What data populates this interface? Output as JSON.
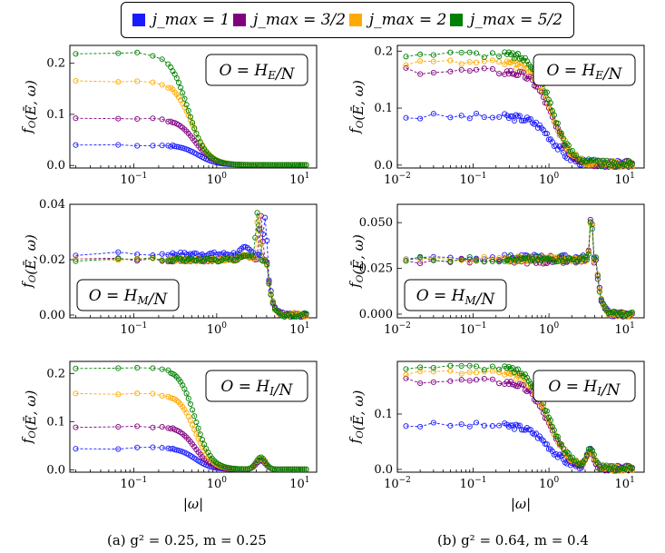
{
  "legend": [
    {
      "label": "j_max = 1",
      "color": "#1a1aff"
    },
    {
      "label": "j_max = 3/2",
      "color": "#800080"
    },
    {
      "label": "j_max = 2",
      "color": "#ffaa00"
    },
    {
      "label": "j_max = 5/2",
      "color": "#008000"
    }
  ],
  "captions": {
    "left": "(a) g² = 0.25, m = 0.25",
    "right": "(b) g² = 0.64, m = 0.4"
  },
  "chart_data": [
    {
      "type": "scatter",
      "panel": "a-top",
      "annotation": "O = H_E/N",
      "ylabel": "f_O(Ē, ω)",
      "xlabel": "",
      "xscale": "log",
      "ylim": [
        -0.005,
        0.235
      ],
      "xticks": [
        "10^-1",
        "10^0",
        "10^1"
      ],
      "yticks": [
        "0.0",
        "0.1",
        "0.2"
      ],
      "yticks_values": [
        0,
        0.1,
        0.2
      ],
      "series": [
        {
          "name": "j_max = 1",
          "plateau": 0.04,
          "tail": 0.001,
          "mid": 0.6,
          "k": 4.0
        },
        {
          "name": "j_max = 3/2",
          "plateau": 0.092,
          "tail": 0.001,
          "mid": 0.55,
          "k": 4.0
        },
        {
          "name": "j_max = 2",
          "plateau": 0.165,
          "tail": 0.001,
          "mid": 0.5,
          "k": 4.0
        },
        {
          "name": "j_max = 5/2",
          "plateau": 0.22,
          "tail": 0.001,
          "mid": 0.45,
          "k": 4.0
        }
      ]
    },
    {
      "type": "scatter",
      "panel": "a-mid",
      "annotation": "O = H_M/N",
      "ylabel": "f_O(Ē, ω)",
      "xlabel": "",
      "xscale": "log",
      "ylim": [
        -0.001,
        0.04
      ],
      "xticks": [
        "10^-1",
        "10^0",
        "10^1"
      ],
      "yticks": [
        "0.00",
        "0.02",
        "0.04"
      ],
      "yticks_values": [
        0,
        0.02,
        0.04
      ],
      "series": [
        {
          "name": "j_max = 1",
          "plateau": 0.022,
          "peak": 0.035,
          "peakx": 3.8
        },
        {
          "name": "j_max = 3/2",
          "plateau": 0.02,
          "peak": 0.036,
          "peakx": 3.4
        },
        {
          "name": "j_max = 2",
          "plateau": 0.02,
          "peak": 0.037,
          "peakx": 3.2
        },
        {
          "name": "j_max = 5/2",
          "plateau": 0.02,
          "peak": 0.037,
          "peakx": 3.1
        }
      ]
    },
    {
      "type": "scatter",
      "panel": "a-bot",
      "annotation": "O = H_I/N",
      "ylabel": "f_O(Ē, ω)",
      "xlabel": "|ω|",
      "xscale": "log",
      "ylim": [
        -0.005,
        0.225
      ],
      "xticks": [
        "10^-1",
        "10^0",
        "10^1"
      ],
      "yticks": [
        "0.0",
        "0.1",
        "0.2"
      ],
      "yticks_values": [
        0,
        0.1,
        0.2
      ],
      "series": [
        {
          "name": "j_max = 1",
          "plateau": 0.045,
          "bump": 0.018
        },
        {
          "name": "j_max = 3/2",
          "plateau": 0.09,
          "bump": 0.02
        },
        {
          "name": "j_max = 2",
          "plateau": 0.158,
          "bump": 0.022
        },
        {
          "name": "j_max = 5/2",
          "plateau": 0.212,
          "bump": 0.025
        }
      ]
    },
    {
      "type": "scatter",
      "panel": "b-top",
      "annotation": "O = H_E/N",
      "ylabel": "f_O(Ē, ω)",
      "xlabel": "",
      "xscale": "log",
      "ylim": [
        -0.005,
        0.21
      ],
      "xticks": [
        "10^-2",
        "10^-1",
        "10^0",
        "10^1"
      ],
      "yticks": [
        "0.0",
        "0.1",
        "0.2"
      ],
      "yticks_values": [
        0,
        0.1,
        0.2
      ],
      "series": [
        {
          "name": "j_max = 1",
          "plateau": 0.085
        },
        {
          "name": "j_max = 3/2",
          "plateau": 0.165
        },
        {
          "name": "j_max = 2",
          "plateau": 0.18
        },
        {
          "name": "j_max = 5/2",
          "plateau": 0.195
        }
      ]
    },
    {
      "type": "scatter",
      "panel": "b-mid",
      "annotation": "O = H_M/N",
      "ylabel": "f_O(Ē, ω)",
      "xlabel": "",
      "xscale": "log",
      "ylim": [
        -0.002,
        0.06
      ],
      "xticks": [
        "10^-2",
        "10^-1",
        "10^0",
        "10^1"
      ],
      "yticks": [
        "0.000",
        "0.025",
        "0.050"
      ],
      "yticks_values": [
        0,
        0.025,
        0.05
      ],
      "series": [
        {
          "name": "j_max = 1",
          "plateau": 0.031
        },
        {
          "name": "j_max = 3/2",
          "plateau": 0.029
        },
        {
          "name": "j_max = 2",
          "plateau": 0.03
        },
        {
          "name": "j_max = 5/2",
          "plateau": 0.03
        }
      ]
    },
    {
      "type": "scatter",
      "panel": "b-bot",
      "annotation": "O = H_I/N",
      "ylabel": "f_O(Ē, ω)",
      "xlabel": "|ω|",
      "xscale": "log",
      "ylim": [
        -0.005,
        0.195
      ],
      "xticks": [
        "10^-2",
        "10^-1",
        "10^0",
        "10^1"
      ],
      "yticks": [
        "0.0",
        "0.1"
      ],
      "yticks_values": [
        0,
        0.1
      ],
      "series": [
        {
          "name": "j_max = 1",
          "plateau": 0.08
        },
        {
          "name": "j_max = 3/2",
          "plateau": 0.16
        },
        {
          "name": "j_max = 2",
          "plateau": 0.175
        },
        {
          "name": "j_max = 5/2",
          "plateau": 0.185
        }
      ]
    }
  ]
}
